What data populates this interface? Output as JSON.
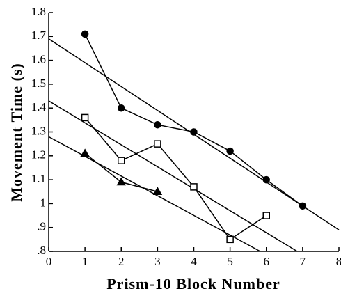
{
  "chart_data": {
    "type": "line",
    "xlabel": "Prism-10 Block Number",
    "ylabel": "Movement Time (s)",
    "xlim": [
      0,
      8
    ],
    "xticks": [
      0,
      1,
      2,
      3,
      4,
      5,
      6,
      7,
      8
    ],
    "ylim": [
      0.8,
      1.8
    ],
    "yticks": [
      {
        "value": 0.8,
        "label": ".8"
      },
      {
        "value": 0.9,
        "label": ".9"
      },
      1,
      1.1,
      1.2,
      1.3,
      1.4,
      1.5,
      1.6,
      1.7,
      1.8
    ],
    "color": "#000000",
    "series": [
      {
        "marker": "circle",
        "marker_fill": "#000000",
        "x": [
          1,
          2,
          3,
          4,
          5,
          6,
          7
        ],
        "values": [
          1.71,
          1.4,
          1.33,
          1.3,
          1.22,
          1.1,
          0.99
        ],
        "fit": {
          "x": [
            0,
            8
          ],
          "y": [
            1.69,
            0.89
          ]
        }
      },
      {
        "marker": "square",
        "marker_fill": "#ffffff",
        "x": [
          1,
          2,
          3,
          4,
          5,
          6
        ],
        "values": [
          1.36,
          1.18,
          1.25,
          1.07,
          0.85,
          0.95
        ],
        "fit": {
          "x": [
            0,
            6.85
          ],
          "y": [
            1.43,
            0.8
          ]
        }
      },
      {
        "marker": "triangle",
        "marker_fill": "#000000",
        "x": [
          1,
          2,
          3
        ],
        "values": [
          1.21,
          1.09,
          1.05
        ],
        "fit": {
          "x": [
            0,
            5.83
          ],
          "y": [
            1.28,
            0.8
          ]
        }
      }
    ]
  }
}
